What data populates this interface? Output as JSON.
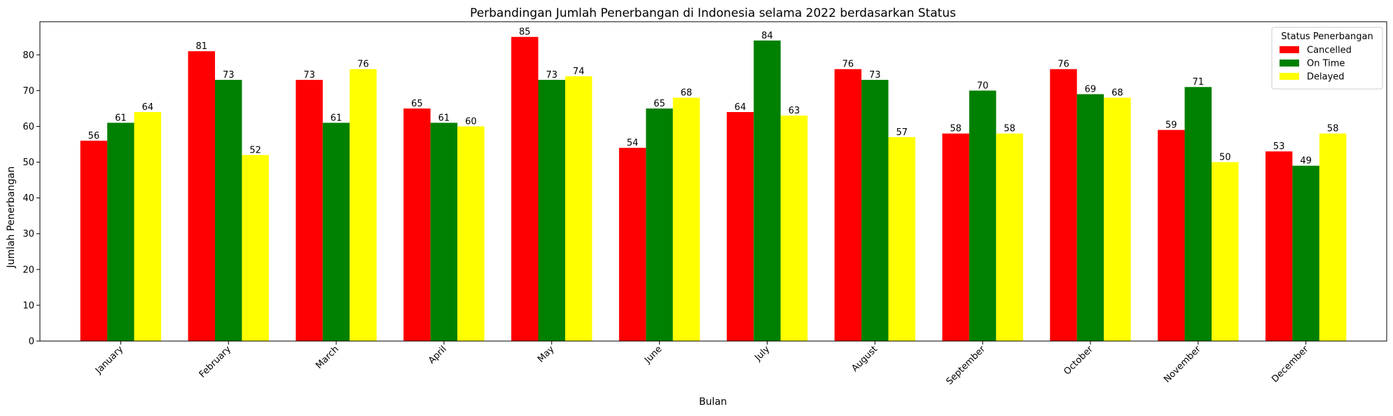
{
  "chart_data": {
    "type": "bar",
    "title": "Perbandingan Jumlah Penerbangan di Indonesia selama 2022 berdasarkan Status",
    "xlabel": "Bulan",
    "ylabel": "Jumlah Penerbangan",
    "categories": [
      "January",
      "February",
      "March",
      "April",
      "May",
      "June",
      "July",
      "August",
      "September",
      "October",
      "November",
      "December"
    ],
    "series": [
      {
        "name": "Cancelled",
        "color": "#ff0000",
        "values": [
          56,
          81,
          73,
          65,
          85,
          54,
          64,
          76,
          58,
          76,
          59,
          53
        ]
      },
      {
        "name": "On Time",
        "color": "#008000",
        "values": [
          61,
          73,
          61,
          61,
          73,
          65,
          84,
          73,
          70,
          69,
          71,
          49
        ]
      },
      {
        "name": "Delayed",
        "color": "#ffff00",
        "values": [
          64,
          52,
          76,
          60,
          74,
          68,
          63,
          57,
          58,
          68,
          50,
          58
        ]
      }
    ],
    "ylim": [
      0,
      89.25
    ],
    "yticks": [
      0,
      10,
      20,
      30,
      40,
      50,
      60,
      70,
      80
    ],
    "grid": false,
    "legend": {
      "title": "Status Penerbangan",
      "placement": "top-right"
    },
    "data_labels": true,
    "x_tick_rotation_deg": 45
  }
}
